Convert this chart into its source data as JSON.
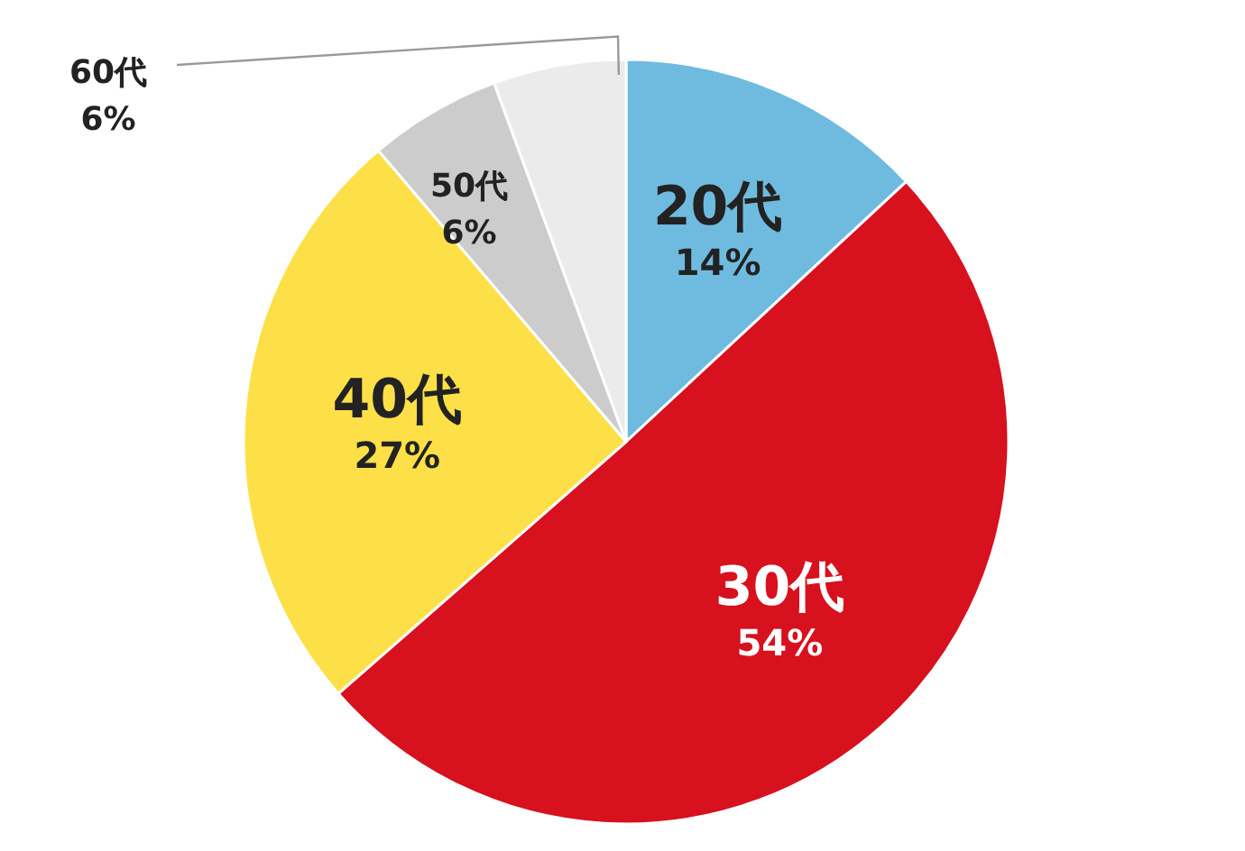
{
  "chart_data": {
    "type": "pie",
    "categories": [
      "20代",
      "30代",
      "40代",
      "50代",
      "60代"
    ],
    "values": [
      14,
      54,
      27,
      6,
      6
    ],
    "value_labels": [
      "14%",
      "54%",
      "27%",
      "6%",
      "6%"
    ],
    "colors": [
      "#6fbbe0",
      "#d7111e",
      "#fde047",
      "#cccccc",
      "#ebebeb"
    ]
  }
}
